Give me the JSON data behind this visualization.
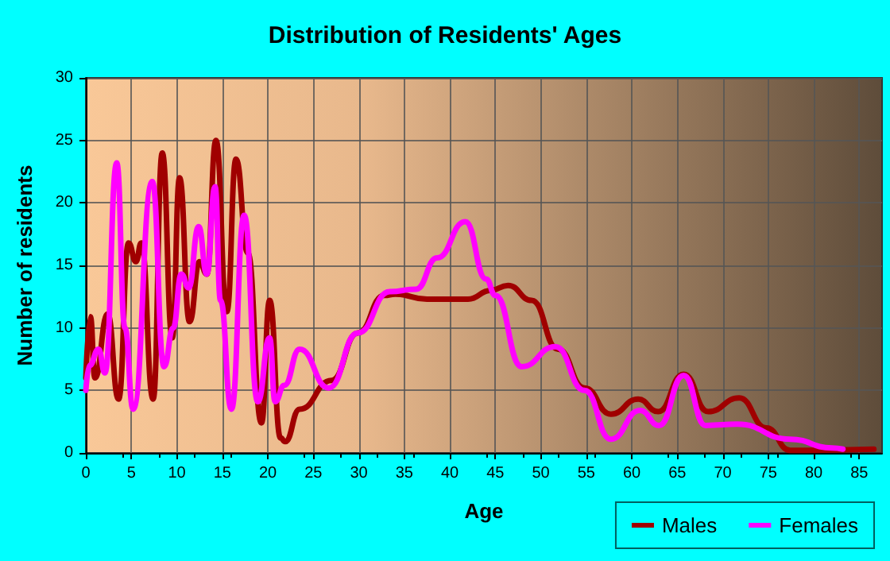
{
  "chart_data": {
    "type": "line",
    "title": "Distribution of Residents' Ages",
    "xlabel": "Age",
    "ylabel": "Number of residents",
    "xlim": [
      0,
      87.5
    ],
    "xticks": [
      0,
      5,
      10,
      15,
      20,
      25,
      30,
      35,
      40,
      45,
      50,
      55,
      60,
      65,
      70,
      75,
      80,
      85
    ],
    "ylim": [
      0,
      30
    ],
    "yticks": [
      0,
      5,
      10,
      15,
      20,
      25,
      30
    ],
    "grid": true,
    "legend": "bottom right",
    "marker": "none",
    "line_style": "solid",
    "series": [
      {
        "name": "Males",
        "color": "#a00000",
        "x": [
          0,
          0.5,
          1,
          2.4,
          3.6,
          4.7,
          5.5,
          6.1,
          7.4,
          8.4,
          9.5,
          10.3,
          11.4,
          12.5,
          13.3,
          14.3,
          15.5,
          16.5,
          17.8,
          19.3,
          20.2,
          21.4,
          21.9,
          23.5,
          27,
          29.9,
          32.8,
          34,
          37.5,
          42,
          44.5,
          46.4,
          49,
          51.9,
          54.8,
          57.7,
          60.7,
          62.9,
          65.7,
          68.4,
          71.8,
          74.8,
          77.4,
          86.6
        ],
        "values": [
          6,
          10.9,
          6,
          11.1,
          4.3,
          16.8,
          15.3,
          16.8,
          4.3,
          24,
          9.2,
          22,
          10.5,
          15.3,
          14.3,
          25,
          11.3,
          23.5,
          16,
          2.4,
          12.2,
          1.2,
          0.9,
          3.5,
          5.8,
          9.6,
          12.6,
          12.7,
          12.3,
          12.3,
          13,
          13.4,
          12.2,
          8.3,
          5.2,
          3.1,
          4.3,
          3.3,
          6.3,
          3.3,
          4.4,
          2,
          0.2,
          0.3
        ]
      },
      {
        "name": "Females",
        "color": "#ff00ff",
        "x": [
          0,
          0.4,
          1.4,
          2.1,
          3.4,
          4.3,
          5.2,
          7.3,
          8.6,
          9.6,
          10.5,
          11.3,
          12.4,
          13.3,
          14.2,
          14.8,
          16,
          17.4,
          18.9,
          20.2,
          20.8,
          21.8,
          23.5,
          26.7,
          29.9,
          33.4,
          36.3,
          38.6,
          41.7,
          44,
          45,
          47.9,
          51.6,
          54.8,
          57.7,
          60.9,
          63,
          65.7,
          68.1,
          71.6,
          77.4,
          82,
          83.2
        ],
        "values": [
          5,
          7,
          8.3,
          6.4,
          23.2,
          10,
          3.5,
          21.7,
          6.9,
          10,
          14.3,
          13.2,
          18.1,
          14.3,
          21.3,
          12.2,
          3.5,
          19,
          4.1,
          9.2,
          4.1,
          5.4,
          8.3,
          5.2,
          9.6,
          12.9,
          13.1,
          15.6,
          18.5,
          13.9,
          12.6,
          6.9,
          8.5,
          5,
          1.1,
          3.4,
          2.2,
          6.2,
          2.2,
          2.3,
          1.1,
          0.4,
          0.3
        ]
      }
    ]
  }
}
